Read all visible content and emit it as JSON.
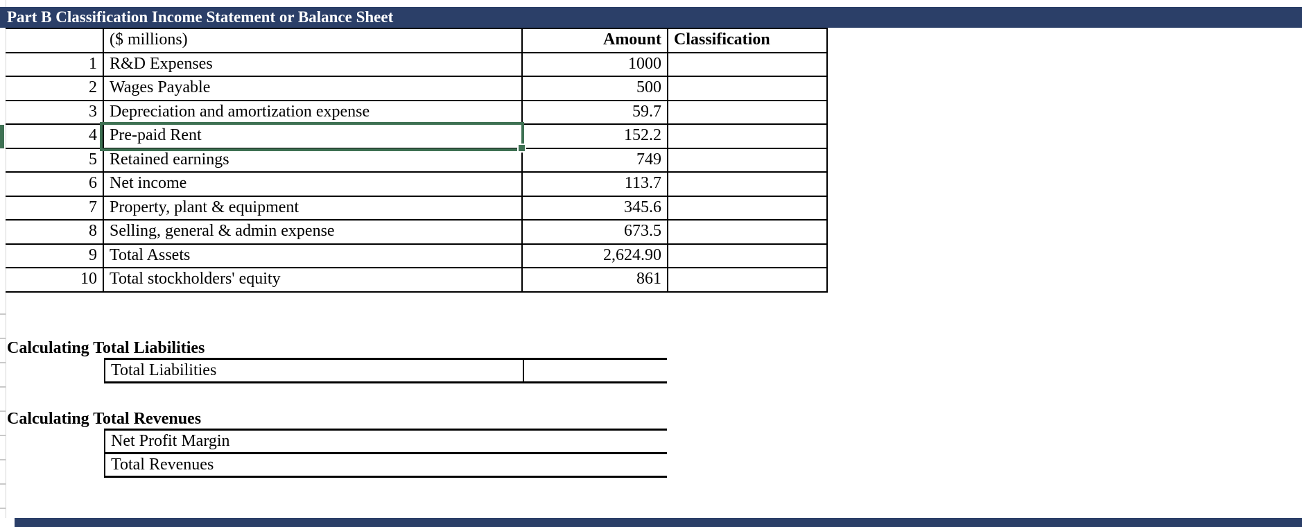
{
  "title_bar": {
    "title": "Part B Classification Income Statement or Balance Sheet"
  },
  "table": {
    "unit_label": "($ millions)",
    "columns": {
      "amount": "Amount",
      "classification": "Classification"
    },
    "rows": [
      {
        "num": "1",
        "label": "R&D Expenses",
        "amount": "1000",
        "classification": ""
      },
      {
        "num": "2",
        "label": "Wages Payable",
        "amount": "500",
        "classification": ""
      },
      {
        "num": "3",
        "label": "Depreciation and amortization expense",
        "amount": "59.7",
        "classification": ""
      },
      {
        "num": "4",
        "label": "Pre-paid Rent",
        "amount": "152.2",
        "classification": ""
      },
      {
        "num": "5",
        "label": "Retained earnings",
        "amount": "749",
        "classification": ""
      },
      {
        "num": "6",
        "label": "Net income",
        "amount": "113.7",
        "classification": ""
      },
      {
        "num": "7",
        "label": "Property, plant & equipment",
        "amount": "345.6",
        "classification": ""
      },
      {
        "num": "8",
        "label": "Selling, general & admin expense",
        "amount": "673.5",
        "classification": ""
      },
      {
        "num": "9",
        "label": "Total Assets",
        "amount": "2,624.90",
        "classification": ""
      },
      {
        "num": "10",
        "label": "Total stockholders' equity",
        "amount": "861",
        "classification": ""
      }
    ]
  },
  "selection": {
    "selected_row_num": "4",
    "selected_cell_text": "Pre-paid Rent"
  },
  "liabilities_section": {
    "heading": "Calculating Total Liabilities",
    "row": {
      "label": "Total Liabilities",
      "value": ""
    }
  },
  "revenues_section": {
    "heading": "Calculating Total Revenues",
    "rows": [
      {
        "label": "Net Profit Margin",
        "value": ""
      },
      {
        "label": "Total Revenues",
        "value": ""
      }
    ]
  },
  "colors": {
    "navy": "#2B3F68",
    "selection_green": "#3E7153"
  }
}
